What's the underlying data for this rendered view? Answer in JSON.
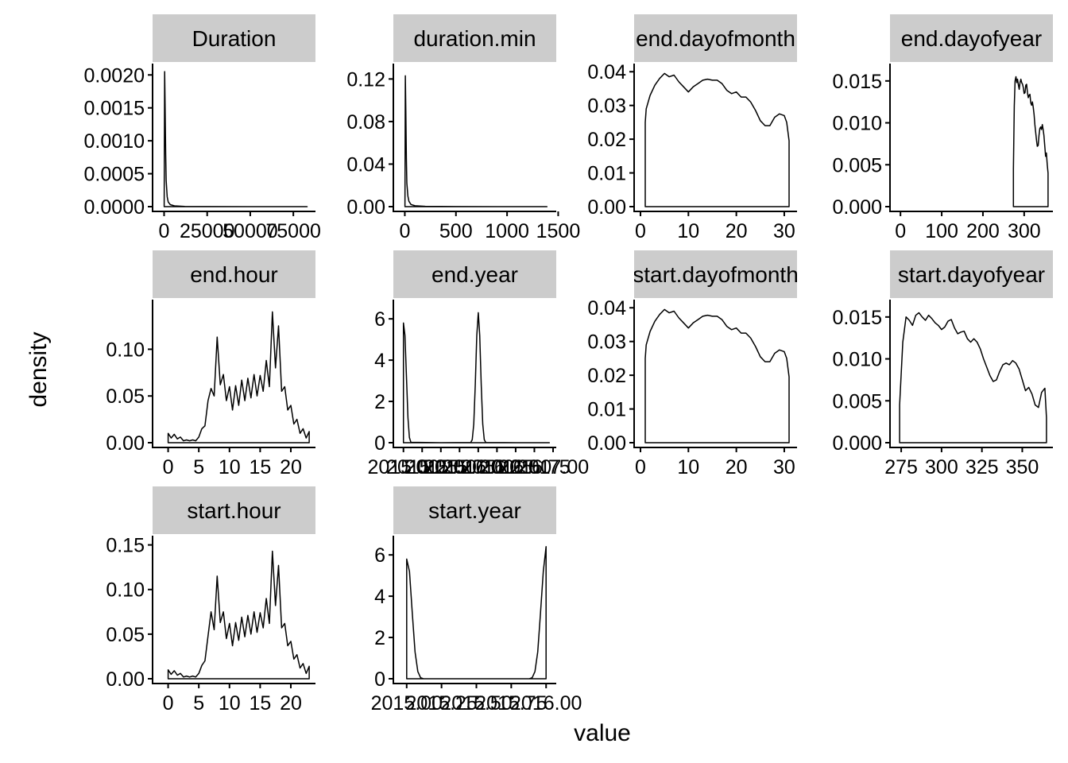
{
  "chart_data": {
    "type": "line",
    "xlabel": "value",
    "ylabel": "density",
    "colors": {
      "background": "#ffffff",
      "strip": "#cccccc",
      "line": "#000000"
    },
    "grid": false,
    "legend": "none",
    "panels": [
      {
        "name": "Duration",
        "xlim": [
          -3000,
          86000
        ],
        "ylim": [
          0,
          0.0021
        ],
        "xticks": [
          0,
          25000,
          50000,
          75000
        ],
        "xtick_labels": [
          "0",
          "25000",
          "50000",
          "75000"
        ],
        "yticks": [
          0,
          0.0005,
          0.001,
          0.0015,
          0.002
        ],
        "ytick_labels": [
          "0.0000",
          "0.0005",
          "0.0010",
          "0.0015",
          "0.0020"
        ],
        "x": [
          60,
          300,
          600,
          900,
          1200,
          1800,
          2400,
          3600,
          6000,
          12000,
          24000,
          48000,
          83000
        ],
        "y": [
          0,
          0.00205,
          0.0015,
          0.0008,
          0.0004,
          0.00015,
          7e-05,
          3e-05,
          1.2e-05,
          4e-06,
          1e-06,
          3e-07,
          1e-07
        ]
      },
      {
        "name": "duration.min",
        "xlim": [
          -50,
          1450
        ],
        "ylim": [
          0,
          0.13
        ],
        "xticks": [
          0,
          500,
          1000,
          1500
        ],
        "xtick_labels": [
          "0",
          "500",
          "1000",
          "1500"
        ],
        "yticks": [
          0,
          0.04,
          0.08,
          0.12
        ],
        "ytick_labels": [
          "0.00",
          "0.04",
          "0.08",
          "0.12"
        ],
        "x": [
          1,
          5,
          10,
          15,
          20,
          30,
          40,
          60,
          100,
          200,
          500,
          900,
          1390
        ],
        "y": [
          0,
          0.123,
          0.09,
          0.045,
          0.022,
          0.01,
          0.005,
          0.002,
          0.0008,
          0.0003,
          0.0001,
          3e-05,
          1e-05
        ]
      },
      {
        "name": "end.dayofmonth",
        "xlim": [
          0,
          32
        ],
        "ylim": [
          0,
          0.041
        ],
        "xticks": [
          0,
          10,
          20,
          30
        ],
        "xtick_labels": [
          "0",
          "10",
          "20",
          "30"
        ],
        "yticks": [
          0,
          0.01,
          0.02,
          0.03,
          0.04
        ],
        "ytick_labels": [
          "0.00",
          "0.01",
          "0.02",
          "0.03",
          "0.04"
        ],
        "x": [
          1,
          1.2,
          2,
          3,
          4,
          5,
          6,
          7,
          8,
          9,
          10,
          11,
          12,
          13,
          14,
          15,
          16,
          17,
          18,
          19,
          20,
          21,
          22,
          23,
          24,
          25,
          26,
          27,
          28,
          29,
          30,
          30.5,
          31
        ],
        "y": [
          0.025,
          0.029,
          0.033,
          0.036,
          0.038,
          0.0395,
          0.0385,
          0.039,
          0.037,
          0.0355,
          0.034,
          0.0355,
          0.0365,
          0.0375,
          0.0378,
          0.0375,
          0.0375,
          0.0365,
          0.0345,
          0.0335,
          0.034,
          0.0325,
          0.0325,
          0.031,
          0.0285,
          0.0255,
          0.024,
          0.024,
          0.0265,
          0.0275,
          0.027,
          0.025,
          0.0195
        ]
      },
      {
        "name": "end.dayofyear",
        "xlim": [
          -10,
          362
        ],
        "ylim": [
          0,
          0.0165
        ],
        "xticks": [
          0,
          100,
          200,
          300
        ],
        "xtick_labels": [
          "0",
          "100",
          "200",
          "300"
        ],
        "yticks": [
          0,
          0.005,
          0.01,
          0.015
        ],
        "ytick_labels": [
          "0.000",
          "0.005",
          "0.010",
          "0.015"
        ],
        "x": [
          274,
          276,
          278,
          280,
          282,
          284,
          286,
          288,
          290,
          292,
          294,
          296,
          298,
          300,
          302,
          304,
          306,
          308,
          310,
          312,
          314,
          316,
          318,
          320,
          322,
          324,
          326,
          328,
          330,
          332,
          334,
          336,
          338,
          340,
          342,
          344,
          346,
          348,
          350,
          352,
          354,
          356,
          358
        ],
        "y": [
          0.0045,
          0.012,
          0.015,
          0.0155,
          0.0148,
          0.0152,
          0.0145,
          0.014,
          0.0148,
          0.0152,
          0.0148,
          0.0146,
          0.0142,
          0.0135,
          0.0136,
          0.0145,
          0.0146,
          0.0136,
          0.013,
          0.0133,
          0.0134,
          0.0124,
          0.0121,
          0.0125,
          0.0119,
          0.011,
          0.0098,
          0.0088,
          0.0079,
          0.0072,
          0.0073,
          0.0085,
          0.0093,
          0.0095,
          0.0092,
          0.0098,
          0.0092,
          0.0085,
          0.0072,
          0.006,
          0.0064,
          0.005,
          0.004
        ]
      },
      {
        "name": "end.hour",
        "xlim": [
          -1.5,
          23.5
        ],
        "ylim": [
          0,
          0.148
        ],
        "xticks": [
          0,
          5,
          10,
          15,
          20
        ],
        "xtick_labels": [
          "0",
          "5",
          "10",
          "15",
          "20"
        ],
        "yticks": [
          0,
          0.05,
          0.1
        ],
        "ytick_labels": [
          "0.00",
          "0.05",
          "0.10"
        ],
        "x": [
          0,
          0.5,
          1,
          1.5,
          2,
          2.5,
          3,
          3.5,
          4,
          4.5,
          5,
          5.5,
          6,
          6.5,
          7,
          7.5,
          8,
          8.5,
          9,
          9.5,
          10,
          10.5,
          11,
          11.5,
          12,
          12.5,
          13,
          13.5,
          14,
          14.5,
          15,
          15.5,
          16,
          16.5,
          17,
          17.5,
          18,
          18.5,
          19,
          19.5,
          20,
          20.5,
          21,
          21.5,
          22,
          22.5,
          23
        ],
        "y": [
          0.01,
          0.005,
          0.009,
          0.004,
          0.006,
          0.002,
          0.003,
          0.002,
          0.003,
          0.002,
          0.006,
          0.015,
          0.018,
          0.045,
          0.058,
          0.05,
          0.113,
          0.062,
          0.073,
          0.045,
          0.06,
          0.035,
          0.061,
          0.04,
          0.067,
          0.045,
          0.069,
          0.048,
          0.073,
          0.05,
          0.072,
          0.055,
          0.088,
          0.06,
          0.14,
          0.08,
          0.125,
          0.055,
          0.06,
          0.035,
          0.04,
          0.02,
          0.025,
          0.01,
          0.015,
          0.005,
          0.012
        ]
      },
      {
        "name": "end.year",
        "xlim": [
          2014.95,
          2017.0
        ],
        "ylim": [
          0,
          6.7
        ],
        "xticks": [
          2015,
          2015.25,
          2015.5,
          2015.75,
          2016,
          2016.25,
          2016.5,
          2016.75,
          2017
        ],
        "xtick_labels": [
          "2015.00",
          "2015.25",
          "2015.50",
          "2015.75",
          "2016.00",
          "2016.25",
          "2016.50",
          "2016.75",
          "2017.00"
        ],
        "yticks": [
          0,
          2,
          4,
          6
        ],
        "ytick_labels": [
          "0",
          "2",
          "4",
          "6"
        ],
        "x": [
          2015.0,
          2015.02,
          2015.04,
          2015.06,
          2015.08,
          2015.1,
          2015.5,
          2015.9,
          2015.92,
          2015.94,
          2015.96,
          2015.98,
          2016.0,
          2016.02,
          2016.04,
          2016.06,
          2016.08,
          2016.1,
          2016.5,
          2016.95
        ],
        "y": [
          5.8,
          5.2,
          3.2,
          1.2,
          0.25,
          0.02,
          0.0,
          0.01,
          0.15,
          0.9,
          2.8,
          5.2,
          6.3,
          5.2,
          2.8,
          0.9,
          0.15,
          0.01,
          0.0,
          0.0
        ]
      },
      {
        "name": "start.dayofmonth",
        "xlim": [
          0,
          32
        ],
        "ylim": [
          0,
          0.041
        ],
        "xticks": [
          0,
          10,
          20,
          30
        ],
        "xtick_labels": [
          "0",
          "10",
          "20",
          "30"
        ],
        "yticks": [
          0,
          0.01,
          0.02,
          0.03,
          0.04
        ],
        "ytick_labels": [
          "0.00",
          "0.01",
          "0.02",
          "0.03",
          "0.04"
        ],
        "x": [
          1,
          1.2,
          2,
          3,
          4,
          5,
          6,
          7,
          8,
          9,
          10,
          11,
          12,
          13,
          14,
          15,
          16,
          17,
          18,
          19,
          20,
          21,
          22,
          23,
          24,
          25,
          26,
          27,
          28,
          29,
          30,
          30.5,
          31
        ],
        "y": [
          0.025,
          0.029,
          0.033,
          0.036,
          0.038,
          0.0395,
          0.0385,
          0.039,
          0.037,
          0.0355,
          0.034,
          0.0355,
          0.0365,
          0.0375,
          0.0378,
          0.0375,
          0.0375,
          0.0365,
          0.0345,
          0.0335,
          0.034,
          0.0325,
          0.0325,
          0.031,
          0.0285,
          0.0255,
          0.024,
          0.024,
          0.0265,
          0.0275,
          0.027,
          0.025,
          0.0195
        ]
      },
      {
        "name": "start.dayofyear",
        "xlim": [
          272,
          367
        ],
        "ylim": [
          0,
          0.0165
        ],
        "xticks": [
          275,
          300,
          325,
          350
        ],
        "xtick_labels": [
          "275",
          "300",
          "325",
          "350"
        ],
        "yticks": [
          0,
          0.005,
          0.01,
          0.015
        ],
        "ytick_labels": [
          "0.000",
          "0.005",
          "0.010",
          "0.015"
        ],
        "x": [
          274,
          276,
          278,
          280,
          282,
          284,
          286,
          288,
          290,
          292,
          294,
          296,
          298,
          300,
          302,
          304,
          306,
          308,
          310,
          312,
          314,
          316,
          318,
          320,
          322,
          324,
          326,
          328,
          330,
          332,
          334,
          336,
          338,
          340,
          342,
          344,
          346,
          348,
          350,
          352,
          354,
          356,
          358,
          360,
          362,
          364,
          365
        ],
        "y": [
          0.0045,
          0.012,
          0.015,
          0.0146,
          0.014,
          0.0152,
          0.0155,
          0.015,
          0.0146,
          0.0152,
          0.0148,
          0.0143,
          0.014,
          0.0135,
          0.0138,
          0.0145,
          0.0147,
          0.0137,
          0.013,
          0.0132,
          0.0133,
          0.0124,
          0.012,
          0.0124,
          0.012,
          0.0112,
          0.01,
          0.009,
          0.008,
          0.0073,
          0.0075,
          0.0085,
          0.0093,
          0.0095,
          0.0093,
          0.0098,
          0.0095,
          0.0088,
          0.0075,
          0.0062,
          0.0066,
          0.0058,
          0.0045,
          0.0042,
          0.006,
          0.0065,
          0.003
        ]
      },
      {
        "name": "start.hour",
        "xlim": [
          -1.5,
          23.5
        ],
        "ylim": [
          0,
          0.155
        ],
        "xticks": [
          0,
          5,
          10,
          15,
          20
        ],
        "xtick_labels": [
          "0",
          "5",
          "10",
          "15",
          "20"
        ],
        "yticks": [
          0,
          0.05,
          0.1,
          0.15
        ],
        "ytick_labels": [
          "0.00",
          "0.05",
          "0.10",
          "0.15"
        ],
        "x": [
          0,
          0.5,
          1,
          1.5,
          2,
          2.5,
          3,
          3.5,
          4,
          4.5,
          5,
          5.5,
          6,
          6.5,
          7,
          7.5,
          8,
          8.5,
          9,
          9.5,
          10,
          10.5,
          11,
          11.5,
          12,
          12.5,
          13,
          13.5,
          14,
          14.5,
          15,
          15.5,
          16,
          16.5,
          17,
          17.5,
          18,
          18.5,
          19,
          19.5,
          20,
          20.5,
          21,
          21.5,
          22,
          22.5,
          23
        ],
        "y": [
          0.01,
          0.005,
          0.009,
          0.004,
          0.006,
          0.002,
          0.003,
          0.002,
          0.003,
          0.002,
          0.006,
          0.015,
          0.02,
          0.048,
          0.075,
          0.055,
          0.115,
          0.063,
          0.075,
          0.045,
          0.062,
          0.037,
          0.063,
          0.043,
          0.069,
          0.047,
          0.071,
          0.05,
          0.075,
          0.052,
          0.074,
          0.057,
          0.09,
          0.062,
          0.143,
          0.082,
          0.127,
          0.057,
          0.062,
          0.037,
          0.042,
          0.022,
          0.027,
          0.012,
          0.017,
          0.006,
          0.014
        ]
      },
      {
        "name": "start.year",
        "xlim": [
          2014.95,
          2016.05
        ],
        "ylim": [
          0,
          6.7
        ],
        "xticks": [
          2015,
          2015.25,
          2015.5,
          2015.75,
          2016
        ],
        "xtick_labels": [
          "2015.00",
          "2015.25",
          "2015.50",
          "2015.75",
          "2016.00"
        ],
        "yticks": [
          0,
          2,
          4,
          6
        ],
        "ytick_labels": [
          "0",
          "2",
          "4",
          "6"
        ],
        "x": [
          2015.0,
          2015.02,
          2015.04,
          2015.06,
          2015.08,
          2015.1,
          2015.12,
          2015.5,
          2015.88,
          2015.9,
          2015.92,
          2015.94,
          2015.96,
          2015.98,
          2016.0
        ],
        "y": [
          5.8,
          5.2,
          3.2,
          1.3,
          0.35,
          0.05,
          0.0,
          0.0,
          0.0,
          0.05,
          0.35,
          1.3,
          3.2,
          5.2,
          6.4
        ]
      }
    ]
  }
}
